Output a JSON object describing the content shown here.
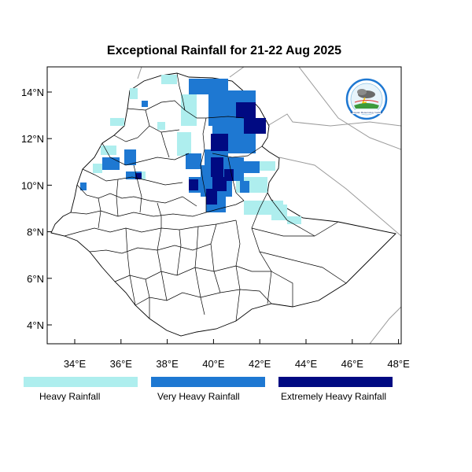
{
  "title": "Exceptional Rainfall for 21-22 Aug 2025",
  "x_ticks": [
    "34°E",
    "36°E",
    "38°E",
    "40°E",
    "42°E",
    "44°E",
    "46°E",
    "48°E"
  ],
  "y_ticks": [
    "14°N",
    "12°N",
    "10°N",
    "8°N",
    "6°N",
    "4°N"
  ],
  "legend": [
    {
      "label": "Heavy Rainfall",
      "color": "#aeeeee"
    },
    {
      "label": "Very Heavy Rainfall",
      "color": "#1e78d2"
    },
    {
      "label": "Extremely Heavy Rainfall",
      "color": "#000a82"
    }
  ],
  "logo": {
    "icon": "ethiopian-meteorology-institute-logo",
    "text": "Ethiopian Meteorology Institute"
  }
}
